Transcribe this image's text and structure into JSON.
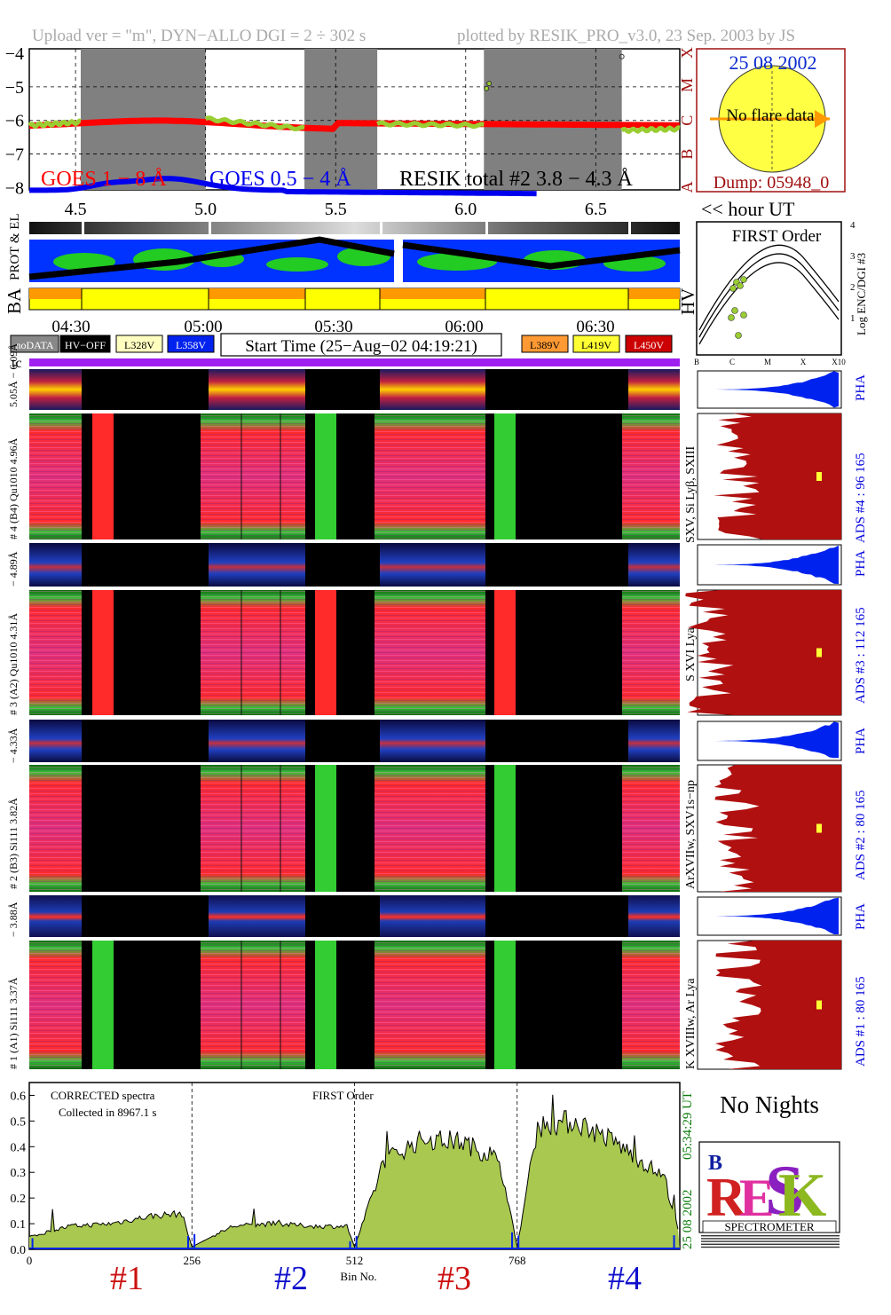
{
  "header": {
    "left": "Upload ver = \"m\", DYN−ALLO DGI =   2 ÷ 302 s",
    "right": "plotted by RESIK_PRO_v3.0, 23 Sep. 2003 by JS"
  },
  "goes_panel": {
    "yticks": [
      "−4",
      "−5",
      "−6",
      "−7",
      "−8"
    ],
    "class_letters": [
      "X",
      "M",
      "C",
      "B",
      "A"
    ],
    "legend": {
      "goes_long": "GOES 1 − 8 Å",
      "goes_short": "GOES 0.5 − 4 Å",
      "resik_total": "RESIK total #2  3.8 − 4.3 Å"
    },
    "xticks": [
      "4.5",
      "5.0",
      "5.5",
      "6.0",
      "6.5"
    ],
    "xlabel": "<< hour UT",
    "colors": {
      "goes_long": "#ff0000",
      "goes_short": "#0000ee",
      "resik": "#9acd32",
      "shade": "#808080"
    }
  },
  "sun_panel": {
    "date": "25 08 2002",
    "status": "No flare data",
    "dump": "Dump: 05948_0"
  },
  "orbit_panel": {
    "label_prot": "PROT & EL",
    "label_ba": "BA",
    "label_hv": "HV",
    "time_ticks": [
      "04:30",
      "05:00",
      "05:30",
      "06:00",
      "06:30"
    ]
  },
  "first_order_panel": {
    "title": "FIRST Order",
    "ylabel": "Log ENC/DGI #3",
    "yticks": [
      "1",
      "2",
      "3",
      "4"
    ],
    "xticks": [
      "B",
      "C",
      "M",
      "X",
      "X10"
    ]
  },
  "legend_row": {
    "nodata": "noDATA",
    "hvoff": "HV−OFF",
    "v1": "L328V",
    "v2": "L358V",
    "start_time": "Start Time (25−Aug−02 04:19:21)",
    "v3": "L389V",
    "v4": "L419V",
    "v5": "L450V"
  },
  "tc_label": "tc",
  "channels": [
    {
      "pha_label": "5.05Å − 6.09Å",
      "main_label": "# 4 (B4) Qu1010 4.96Å",
      "lines": "SXV, Si Lyβ, SXIII",
      "ads": "ADS #4 :   96 165"
    },
    {
      "pha_label": "− 4.89Å",
      "main_label": "# 3 (A2) Qu1010  4.31Å",
      "lines": "S XVI Lya",
      "ads": "ADS #3 :   112 165"
    },
    {
      "pha_label": "− 4.33Å",
      "main_label": "# 2 (B3) Si111  3.82Å",
      "lines": "ArXVIIw, SXV1s−np",
      "ads": "ADS #2 :   80 165"
    },
    {
      "pha_label": "− 3.88Å",
      "main_label": "# 1 (A1) Si111  3.37Å",
      "lines": "K XVIIIw, Ar Lya",
      "ads": "ADS #1 :   80 165"
    }
  ],
  "pha_word": "PHA",
  "spectrum_panel": {
    "note1": "CORRECTED spectra",
    "note2": "Collected in  8967.1 s",
    "order": "FIRST Order",
    "yticks": [
      "0.0",
      "0.1",
      "0.2",
      "0.3",
      "0.4",
      "0.5",
      "0.6"
    ],
    "xticks": [
      "0",
      "256",
      "512",
      "768"
    ],
    "xlabel": "Bin No.",
    "stamp_date": "25 08 2002",
    "stamp_time": "05:34:29 UT",
    "ch_labels": [
      "#1",
      "#2",
      "#3",
      "#4"
    ]
  },
  "no_nights": "No Nights",
  "logo": {
    "text": "SPECTROMETER"
  },
  "chart_data": {
    "type": "line",
    "title": "",
    "x": [
      0,
      64,
      128,
      192,
      240,
      256,
      320,
      384,
      448,
      500,
      512,
      560,
      620,
      680,
      740,
      768,
      800,
      860,
      920,
      1000,
      1024
    ],
    "values": [
      0.05,
      0.09,
      0.1,
      0.13,
      0.14,
      0.01,
      0.09,
      0.1,
      0.09,
      0.09,
      0.01,
      0.35,
      0.43,
      0.42,
      0.35,
      0.01,
      0.48,
      0.5,
      0.42,
      0.28,
      0.05
    ],
    "xlabel": "Bin No.",
    "ylabel": "",
    "xlim": [
      0,
      1024
    ],
    "ylim": [
      0,
      0.65
    ]
  }
}
